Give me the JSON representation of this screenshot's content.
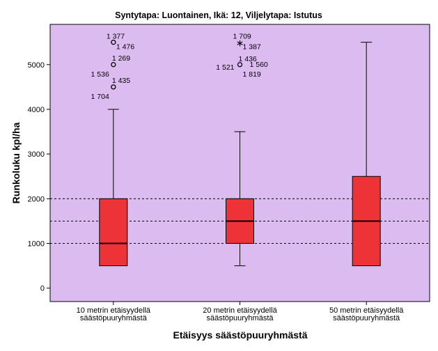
{
  "chart_data": {
    "type": "boxplot",
    "title": "Syntytapa: Luontainen, Ikä: 12, Viljelytapa: Istutus",
    "xlabel": "Etäisyys säästöpuuryhmästä",
    "ylabel": "Runkoluku kpl/ha",
    "ylim": [
      -300,
      5900
    ],
    "yticks": [
      0,
      1000,
      2000,
      3000,
      4000,
      5000
    ],
    "reference_lines": [
      1000,
      1500,
      2000
    ],
    "plot_background": "#dcbcf0",
    "box_color": "#ee3338",
    "grid": false,
    "categories": [
      [
        "10 metrin etäisyydellä",
        "säästöpuuryhmästä"
      ],
      [
        "20 metrin etäisyydellä",
        "säästöpuuryhmästä"
      ],
      [
        "50 metrin etäisyydellä",
        "säästöpuuryhmästä"
      ]
    ],
    "boxes": [
      {
        "whisker_low": 500,
        "q1": 500,
        "median": 1000,
        "q3": 2000,
        "whisker_high": 4000,
        "outliers": [
          {
            "value": 5500,
            "marker": "circle",
            "labels": [
              "1 377",
              "1 476"
            ]
          },
          {
            "value": 5000,
            "marker": "circle",
            "labels": [
              "1 269",
              "1 536"
            ]
          },
          {
            "value": 4500,
            "marker": "circle",
            "labels": [
              "1 435",
              "1 704"
            ]
          }
        ]
      },
      {
        "whisker_low": 500,
        "q1": 1000,
        "median": 1500,
        "q3": 2000,
        "whisker_high": 3500,
        "outliers": [
          {
            "value": 5500,
            "marker": "star",
            "labels": [
              "1 709",
              "1 387"
            ]
          },
          {
            "value": 5000,
            "marker": "circle",
            "labels": [
              "1 436",
              "1 521",
              "1 560",
              "1 819"
            ]
          }
        ]
      },
      {
        "whisker_low": 500,
        "q1": 500,
        "median": 1500,
        "q3": 2500,
        "whisker_high": 5500,
        "outliers": []
      }
    ]
  }
}
